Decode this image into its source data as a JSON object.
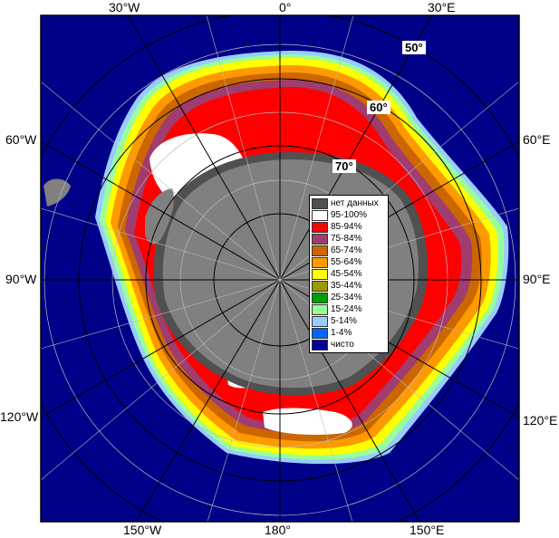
{
  "longitude_labels": [
    {
      "id": "lon-30w-top",
      "text": "30°W"
    },
    {
      "id": "lon-0-top",
      "text": "0°"
    },
    {
      "id": "lon-30e-top",
      "text": "30°E"
    },
    {
      "id": "lon-60w",
      "text": "60°W"
    },
    {
      "id": "lon-60e",
      "text": "60°E"
    },
    {
      "id": "lon-90w",
      "text": "90°W"
    },
    {
      "id": "lon-90e",
      "text": "90°E"
    },
    {
      "id": "lon-120w",
      "text": "120°W"
    },
    {
      "id": "lon-120e",
      "text": "120°E"
    },
    {
      "id": "lon-150w",
      "text": "150°W"
    },
    {
      "id": "lon-180",
      "text": "180°"
    },
    {
      "id": "lon-150e",
      "text": "150°E"
    }
  ],
  "latitude_labels": [
    {
      "id": "lat-50",
      "text": "50°"
    },
    {
      "id": "lat-60",
      "text": "60°"
    },
    {
      "id": "lat-70",
      "text": "70°"
    }
  ],
  "legend": {
    "items": [
      {
        "label": "нет данных",
        "color": "#505050"
      },
      {
        "label": "95-100%",
        "color": "#ffffff"
      },
      {
        "label": "85-94%",
        "color": "#ff0000"
      },
      {
        "label": "75-84%",
        "color": "#a03c6e"
      },
      {
        "label": "65-74%",
        "color": "#cc6600"
      },
      {
        "label": "55-64%",
        "color": "#ff9900"
      },
      {
        "label": "45-54%",
        "color": "#ffff00"
      },
      {
        "label": "35-44%",
        "color": "#999900"
      },
      {
        "label": "25-34%",
        "color": "#00a000"
      },
      {
        "label": "15-24%",
        "color": "#99ff99"
      },
      {
        "label": "5-14%",
        "color": "#99ccff"
      },
      {
        "label": "1-4%",
        "color": "#0066ff"
      },
      {
        "label": "чисто",
        "color": "#000099"
      }
    ]
  },
  "colors": {
    "ocean": "#000088",
    "land": "#808080",
    "grid": "#bbbbbb",
    "grid_dark": "#000000"
  }
}
